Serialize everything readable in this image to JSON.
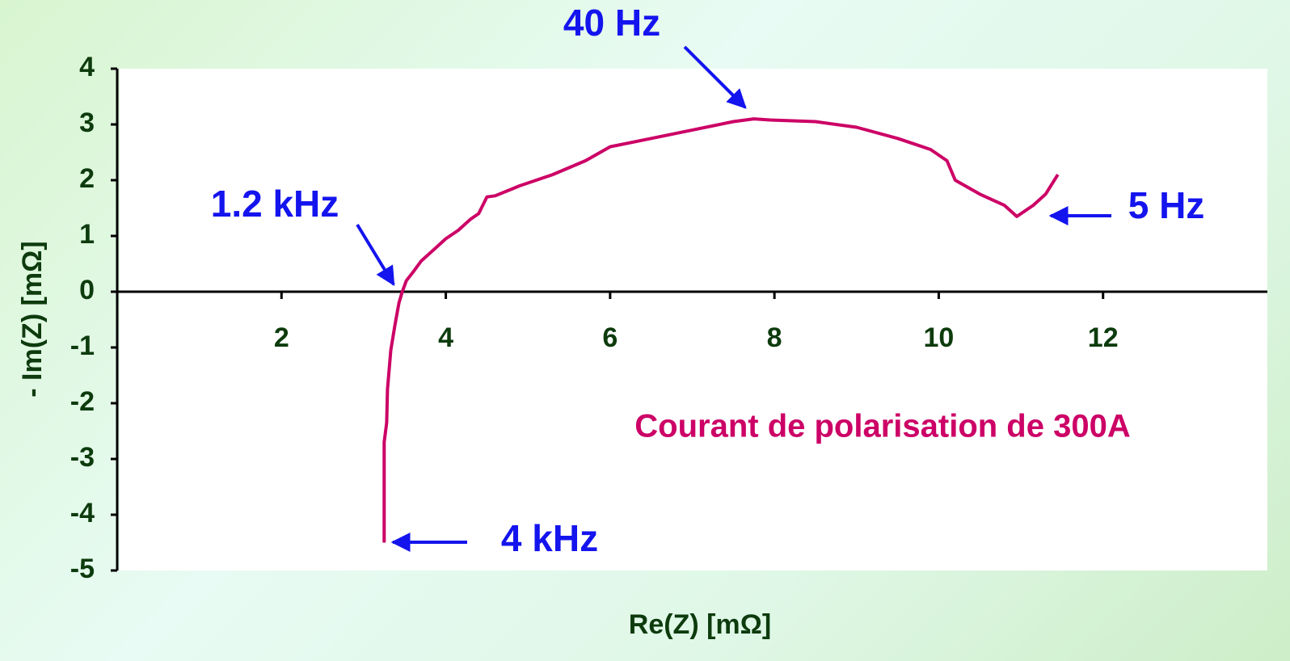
{
  "chart_data": {
    "type": "line",
    "xlabel": "Re(Z) [mΩ]",
    "ylabel": "- Im(Z) [mΩ]",
    "annotations": [
      "40 Hz",
      "1.2 kHz",
      "5 Hz",
      "4 kHz",
      "Courant de polarisation de 300A"
    ],
    "x": [
      3.25,
      3.25,
      3.28,
      3.29,
      3.33,
      3.38,
      3.43,
      3.47,
      3.52,
      3.6,
      3.7,
      3.85,
      4.0,
      4.15,
      4.3,
      4.4,
      4.5,
      4.6,
      4.9,
      5.3,
      5.7,
      6.0,
      6.5,
      7.0,
      7.5,
      7.75,
      7.95,
      8.5,
      9.0,
      9.5,
      9.9,
      10.1,
      10.2,
      10.5,
      10.8,
      10.95,
      11.15,
      11.3,
      11.45
    ],
    "values": [
      -4.5,
      -2.7,
      -2.35,
      -1.75,
      -1.05,
      -0.6,
      -0.2,
      0,
      0.2,
      0.35,
      0.55,
      0.75,
      0.95,
      1.1,
      1.3,
      1.4,
      1.7,
      1.72,
      1.9,
      2.1,
      2.35,
      2.6,
      2.75,
      2.9,
      3.05,
      3.1,
      3.08,
      3.05,
      2.95,
      2.75,
      2.55,
      2.35,
      2.0,
      1.75,
      1.55,
      1.35,
      1.55,
      1.75,
      2.1
    ],
    "color": "#cc0066",
    "xlim": [
      0,
      14
    ],
    "xticks": [
      2,
      4,
      6,
      8,
      10,
      12
    ],
    "ylim": [
      -5,
      4
    ],
    "yticks": [
      -5,
      -4,
      -3,
      -2,
      -1,
      0,
      1,
      2,
      3,
      4
    ]
  }
}
